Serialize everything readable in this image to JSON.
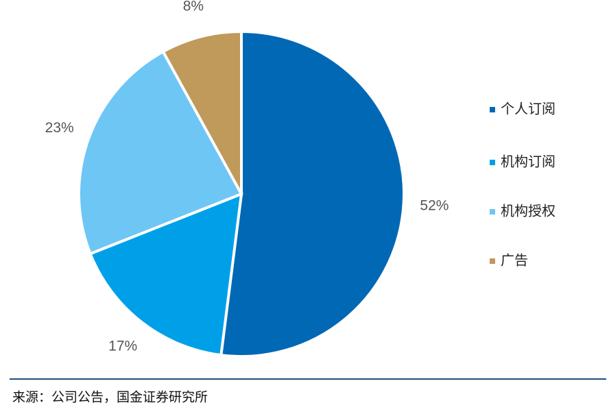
{
  "chart_data": {
    "type": "pie",
    "categories": [
      "个人订阅",
      "机构订阅",
      "机构授权",
      "广告"
    ],
    "values": [
      52,
      17,
      23,
      8
    ],
    "value_labels": [
      "52%",
      "17%",
      "23%",
      "8%"
    ],
    "colors": [
      "#0068b5",
      "#00a0e9",
      "#6ec6f5",
      "#c09a5b"
    ],
    "source": "来源：公司公告，国金证券研究所"
  }
}
